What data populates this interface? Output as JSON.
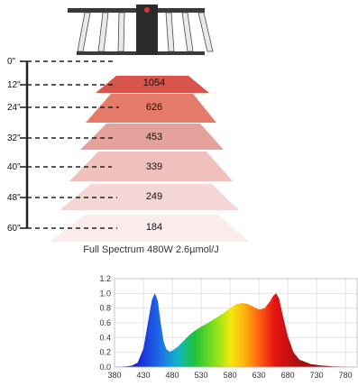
{
  "caption": "Full Spectrum 480W 2.6µmol/J",
  "colors": {
    "frame": "#333333",
    "bar": "#e8e8e8",
    "indicator": "#d93a2f",
    "dash": "#222222"
  },
  "ppfd_chart": {
    "heights": [
      "0\"",
      "12\"",
      "24\"",
      "32\"",
      "40\"",
      "48\"",
      "60\""
    ],
    "levels": [
      {
        "height": "12\"",
        "value": "1054",
        "color": "#d9544a"
      },
      {
        "height": "24\"",
        "value": "626",
        "color": "#e67a68"
      },
      {
        "height": "32\"",
        "value": "453",
        "color": "#e5a19b"
      },
      {
        "height": "40\"",
        "value": "339",
        "color": "#f0c0bd"
      },
      {
        "height": "48\"",
        "value": "249",
        "color": "#f5d7d6"
      },
      {
        "height": "60\"",
        "value": "184",
        "color": "#fbecec"
      }
    ]
  },
  "chart_data": {
    "type": "area",
    "title": "",
    "xlabel": "",
    "ylabel": "",
    "xlim": [
      380,
      800
    ],
    "ylim": [
      0,
      1.2
    ],
    "x_ticks": [
      380,
      430,
      480,
      530,
      580,
      630,
      680,
      730,
      780
    ],
    "y_ticks": [
      "0.0",
      "0.2",
      "0.4",
      "0.6",
      "0.8",
      "1.0",
      "1.2"
    ],
    "grid": true,
    "series": [
      {
        "x": [
          380,
          400,
          410,
          420,
          430,
          440,
          445,
          450,
          455,
          460,
          465,
          470,
          475,
          480,
          490,
          500,
          510,
          520,
          530,
          540,
          550,
          560,
          570,
          580,
          590,
          600,
          610,
          620,
          630,
          640,
          650,
          655,
          660,
          665,
          670,
          680,
          690,
          700,
          720,
          740,
          760,
          780,
          800
        ],
        "values": [
          0.0,
          0.01,
          0.02,
          0.06,
          0.25,
          0.7,
          0.92,
          1.0,
          0.9,
          0.6,
          0.35,
          0.24,
          0.21,
          0.22,
          0.28,
          0.36,
          0.44,
          0.5,
          0.55,
          0.59,
          0.64,
          0.69,
          0.74,
          0.8,
          0.85,
          0.87,
          0.86,
          0.82,
          0.78,
          0.8,
          0.9,
          0.97,
          1.0,
          0.93,
          0.75,
          0.42,
          0.2,
          0.1,
          0.04,
          0.02,
          0.01,
          0.005,
          0.0
        ]
      }
    ]
  }
}
